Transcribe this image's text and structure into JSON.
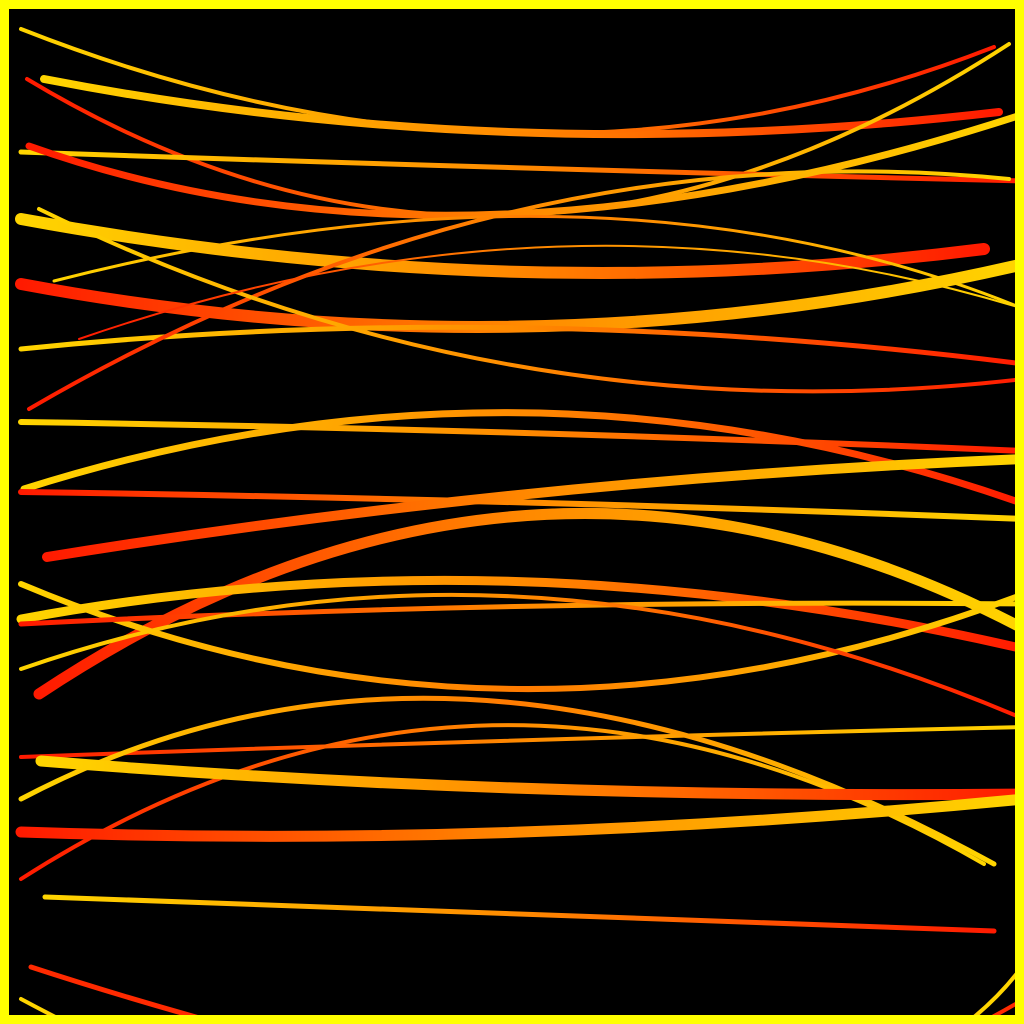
{
  "artwork": {
    "kind": "generative line art",
    "background_color": "#000000",
    "frame_color": "#ffff00",
    "gradient_colors": {
      "red": "#ff1a00",
      "orange": "#ff7a00",
      "yellow": "#ffd500"
    }
  }
}
